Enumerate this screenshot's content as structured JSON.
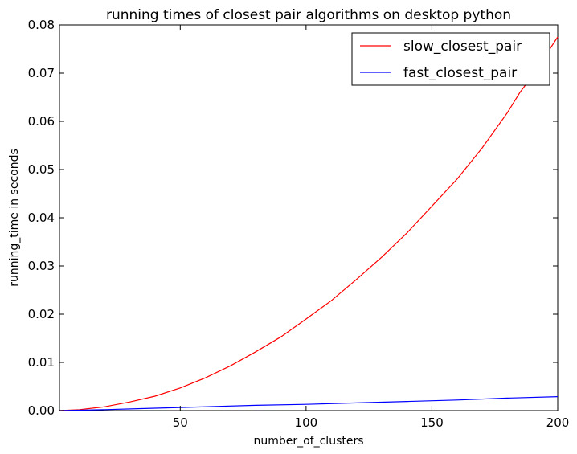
{
  "chart_data": {
    "type": "line",
    "title": "running times of closest pair algorithms on desktop python",
    "xlabel": "number_of_clusters",
    "ylabel": "running_time in seconds",
    "xlim": [
      2,
      200
    ],
    "ylim": [
      0,
      0.08
    ],
    "x_ticks": [
      50,
      100,
      150,
      200
    ],
    "y_ticks": [
      0.0,
      0.01,
      0.02,
      0.03,
      0.04,
      0.05,
      0.06,
      0.07,
      0.08
    ],
    "x_tick_labels": [
      "50",
      "100",
      "150",
      "200"
    ],
    "y_tick_labels": [
      "0.00",
      "0.01",
      "0.02",
      "0.03",
      "0.04",
      "0.05",
      "0.06",
      "0.07",
      "0.08"
    ],
    "grid": false,
    "legend_position": "top-right",
    "series": [
      {
        "name": "slow_closest_pair",
        "color": "#ff0000",
        "x": [
          2,
          10,
          20,
          30,
          40,
          50,
          60,
          70,
          80,
          90,
          100,
          110,
          120,
          130,
          140,
          150,
          160,
          170,
          180,
          185,
          190,
          195,
          200
        ],
        "y": [
          0.0,
          0.0002,
          0.0008,
          0.0018,
          0.003,
          0.0047,
          0.0068,
          0.0093,
          0.0122,
          0.0153,
          0.019,
          0.0228,
          0.0272,
          0.0318,
          0.0368,
          0.0424,
          0.048,
          0.0545,
          0.0618,
          0.066,
          0.0695,
          0.0735,
          0.0775
        ]
      },
      {
        "name": "fast_closest_pair",
        "color": "#0000ff",
        "x": [
          2,
          20,
          40,
          60,
          80,
          100,
          120,
          140,
          160,
          180,
          200
        ],
        "y": [
          0.0,
          0.0002,
          0.0005,
          0.0008,
          0.0011,
          0.0013,
          0.0016,
          0.0019,
          0.0022,
          0.0026,
          0.0029
        ]
      }
    ]
  }
}
